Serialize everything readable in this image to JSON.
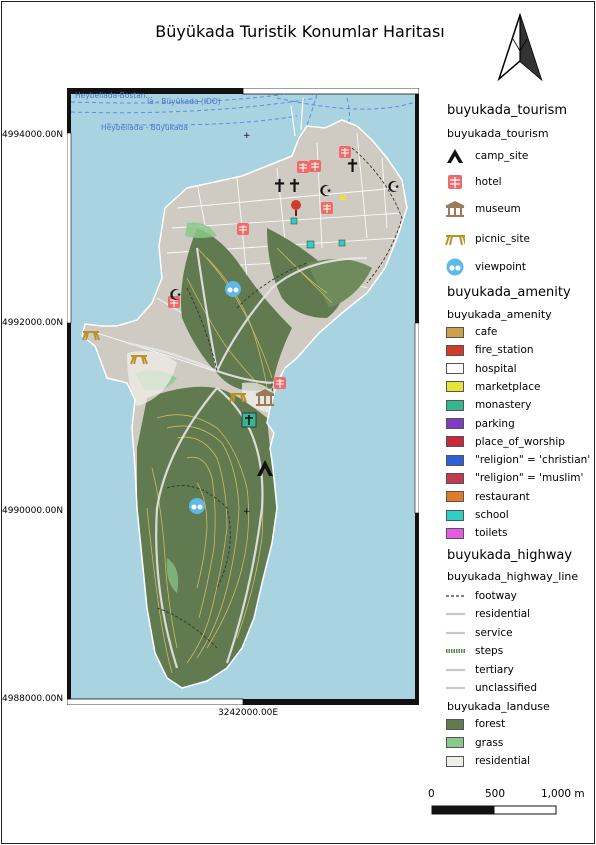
{
  "title": "Büyükada Turistik Konumlar Haritası",
  "map": {
    "y_labels": [
      "4994000.00N",
      "4992000.00N",
      "4990000.00N",
      "4988000.00N"
    ],
    "x_label": "3242000.00E",
    "place_labels": [
      "Heybeliada-Bostan...",
      "Ia - Büyükada (IDO)",
      "Heybeliada - Büyükada"
    ],
    "colors": {
      "sea": "#a9d3e0",
      "residential": "#cfcbc3",
      "forest": "#617a4f",
      "grass": "#8bc88b",
      "contour": "#d8c36a",
      "road": "#e6e6e6"
    }
  },
  "legend": {
    "tourism": {
      "title": "buyukada_tourism",
      "subtitle": "buyukada_tourism",
      "items": [
        {
          "label": "camp_site",
          "icon": "camp-site-icon"
        },
        {
          "label": "hotel",
          "icon": "hotel-icon"
        },
        {
          "label": "museum",
          "icon": "museum-icon"
        },
        {
          "label": "picnic_site",
          "icon": "picnic-site-icon"
        },
        {
          "label": "viewpoint",
          "icon": "viewpoint-icon"
        }
      ]
    },
    "amenity": {
      "title": "buyukada_amenity",
      "subtitle": "buyukada_amenity",
      "items": [
        {
          "label": "cafe",
          "color": "#c9a24a"
        },
        {
          "label": "fire_station",
          "color": "#d13b2a"
        },
        {
          "label": "hospital",
          "color": "#ffffff"
        },
        {
          "label": "marketplace",
          "color": "#e8e23a"
        },
        {
          "label": "monastery",
          "color": "#37b58c"
        },
        {
          "label": "parking",
          "color": "#7e3cc4"
        },
        {
          "label": "place_of_worship",
          "color": "#c8283c"
        },
        {
          "label": "\"religion\" = 'christian'",
          "color": "#2c5fd8"
        },
        {
          "label": "\"religion\" = 'muslim'",
          "color": "#c03a52"
        },
        {
          "label": "restaurant",
          "color": "#e07c28"
        },
        {
          "label": "school",
          "color": "#2fd0c4"
        },
        {
          "label": "toilets",
          "color": "#e45ce0"
        }
      ]
    },
    "highway": {
      "title": "buyukada_highway",
      "subtitle": "buyukada_highway_line",
      "items": [
        {
          "label": "footway"
        },
        {
          "label": "residential"
        },
        {
          "label": "service"
        },
        {
          "label": "steps"
        },
        {
          "label": "tertiary"
        },
        {
          "label": "unclassified"
        }
      ]
    },
    "landuse": {
      "subtitle": "buyukada_landuse",
      "items": [
        {
          "label": "forest",
          "color": "#617a4f"
        },
        {
          "label": "grass",
          "color": "#8bc88b"
        },
        {
          "label": "residential",
          "color": "#f2efe9"
        }
      ]
    }
  },
  "scale": {
    "labels": [
      "0",
      "500",
      "1,000 m"
    ]
  }
}
